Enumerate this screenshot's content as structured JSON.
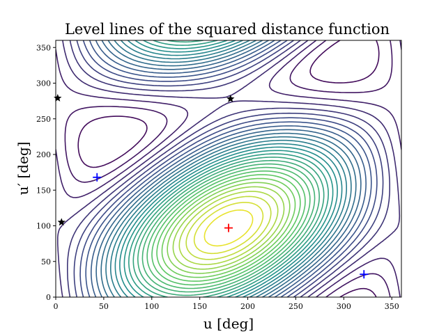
{
  "chart_data": {
    "type": "contour",
    "title": "Level lines of the squared distance function",
    "xlabel": "u [deg]",
    "ylabel": "u′ [deg]",
    "xlim": [
      0,
      360
    ],
    "ylim": [
      0,
      360
    ],
    "x_ticks": [
      0,
      50,
      100,
      150,
      200,
      250,
      300,
      350
    ],
    "y_ticks": [
      0,
      50,
      100,
      150,
      200,
      250,
      300,
      350
    ],
    "colormap": [
      "#440154",
      "#3b528b",
      "#21918c",
      "#5ec962",
      "#fde725"
    ],
    "contour_levels": 30,
    "markers": [
      {
        "kind": "minimum",
        "symbol": "plus",
        "color": "#ff0000",
        "x": 180,
        "y": 97
      },
      {
        "kind": "saddle",
        "symbol": "plus",
        "color": "#0000ff",
        "x": 43,
        "y": 168
      },
      {
        "kind": "saddle",
        "symbol": "plus",
        "color": "#0000ff",
        "x": 321,
        "y": 32
      },
      {
        "kind": "maximum",
        "symbol": "star",
        "color": "#000000",
        "x": 2,
        "y": 279
      },
      {
        "kind": "maximum",
        "symbol": "star",
        "color": "#000000",
        "x": 182,
        "y": 278
      },
      {
        "kind": "maximum",
        "symbol": "star",
        "color": "#000000",
        "x": 6,
        "y": 105
      }
    ],
    "grid": false
  }
}
